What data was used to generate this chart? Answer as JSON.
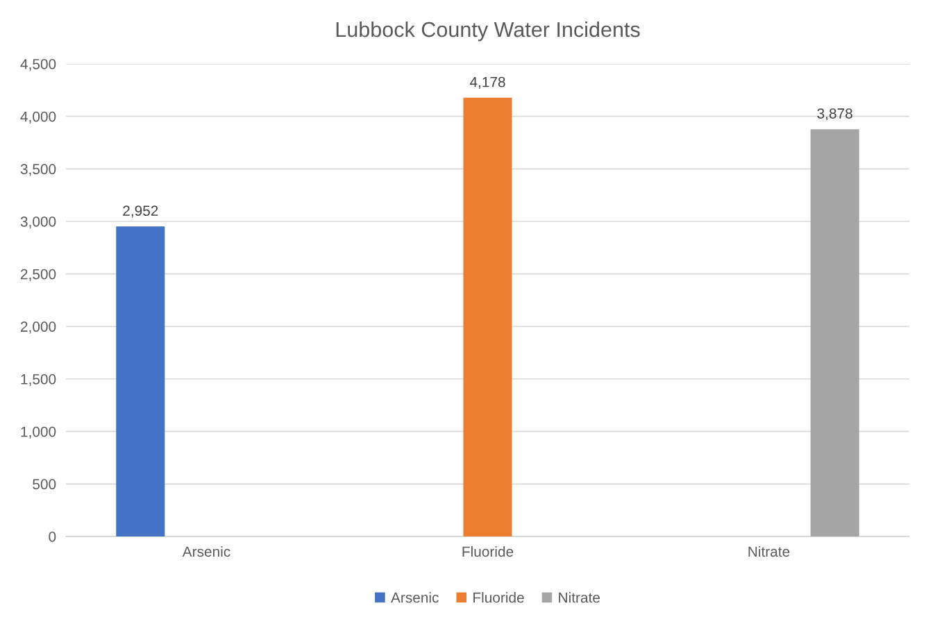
{
  "chart_data": {
    "type": "bar",
    "title": "Lubbock County Water Incidents",
    "categories": [
      "Arsenic",
      "Fluoride",
      "Nitrate"
    ],
    "series": [
      {
        "name": "Arsenic",
        "color": "#4472c4",
        "values": [
          2952,
          null,
          null
        ],
        "value_labels": [
          "2,952",
          null,
          null
        ]
      },
      {
        "name": "Fluoride",
        "color": "#ed7d31",
        "values": [
          null,
          4178,
          null
        ],
        "value_labels": [
          null,
          "4,178",
          null
        ]
      },
      {
        "name": "Nitrate",
        "color": "#a5a5a5",
        "values": [
          null,
          null,
          3878
        ],
        "value_labels": [
          null,
          null,
          "3,878"
        ]
      }
    ],
    "ylim": [
      0,
      4500
    ],
    "yticks": [
      0,
      500,
      {
        "value": 1000,
        "label": "1,000"
      },
      {
        "value": 1500,
        "label": "1,500"
      },
      {
        "value": 2000,
        "label": "2,000"
      },
      {
        "value": 2500,
        "label": "2,500"
      },
      {
        "value": 3000,
        "label": "3,000"
      },
      {
        "value": 3500,
        "label": "3,500"
      },
      {
        "value": 4000,
        "label": "4,000"
      },
      {
        "value": 4500,
        "label": "4,500"
      }
    ],
    "grid": "y",
    "legend": "bottom"
  }
}
